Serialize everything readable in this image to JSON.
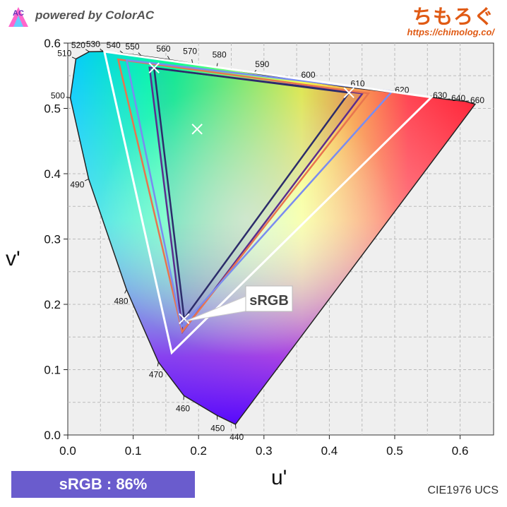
{
  "header": {
    "logo_text": "AC",
    "powered_by": "powered by ColorAC",
    "brand_name": "ちもろぐ",
    "brand_url": "https://chimolog.co/"
  },
  "footer": {
    "coverage_label": "sRGB : 86%",
    "color_space_label": "CIE1976 UCS"
  },
  "chart_data": {
    "type": "scatter",
    "title": "",
    "xlabel": "u'",
    "ylabel": "v'",
    "xlim": [
      0.0,
      0.65
    ],
    "ylim": [
      0.0,
      0.6
    ],
    "xticks": [
      "0.0",
      "0.1",
      "0.2",
      "0.3",
      "0.4",
      "0.5",
      "0.6"
    ],
    "yticks": [
      "0.0",
      "0.1",
      "0.2",
      "0.3",
      "0.4",
      "0.5",
      "0.6"
    ],
    "grid": true,
    "spectral_locus": [
      [
        0.2564,
        0.0163,
        "440"
      ],
      [
        0.2284,
        0.0299,
        "450"
      ],
      [
        0.1776,
        0.0602,
        "460"
      ],
      [
        0.1386,
        0.1115,
        "470"
      ],
      [
        0.0898,
        0.2227,
        "480"
      ],
      [
        0.0319,
        0.392,
        "490"
      ],
      [
        0.0039,
        0.5161,
        "500"
      ],
      [
        0.0124,
        0.5757,
        "510"
      ],
      [
        0.0328,
        0.5868,
        "520"
      ],
      [
        0.0547,
        0.5871,
        "530"
      ],
      [
        0.0848,
        0.5841,
        "540"
      ],
      [
        0.1124,
        0.5806,
        "550"
      ],
      [
        0.1559,
        0.5745,
        "560"
      ],
      [
        0.191,
        0.5688,
        "570"
      ],
      [
        0.2277,
        0.5629,
        "580"
      ],
      [
        0.2836,
        0.5539,
        "590"
      ],
      [
        0.35,
        0.5435,
        "600"
      ],
      [
        0.4245,
        0.533,
        "610"
      ],
      [
        0.492,
        0.525,
        "620"
      ],
      [
        0.55,
        0.518,
        "630"
      ],
      [
        0.578,
        0.514,
        "640"
      ],
      [
        0.607,
        0.511,
        "660"
      ],
      [
        0.623,
        0.5065,
        ""
      ]
    ],
    "series": [
      {
        "name": "sRGB",
        "color": "#5b2d8e",
        "points": [
          [
            0.4507,
            0.5229
          ],
          [
            0.125,
            0.5625
          ],
          [
            0.1754,
            0.1579
          ]
        ]
      },
      {
        "color": "#e8744f",
        "points": [
          [
            0.46,
            0.523
          ],
          [
            0.077,
            0.575
          ],
          [
            0.175,
            0.158
          ]
        ]
      },
      {
        "color": "#7a8cf0",
        "points": [
          [
            0.496,
            0.526
          ],
          [
            0.09,
            0.574
          ],
          [
            0.174,
            0.166
          ]
        ]
      },
      {
        "color": "#ffffff",
        "points": [
          [
            0.556,
            0.517
          ],
          [
            0.056,
            0.587
          ],
          [
            0.159,
            0.126
          ]
        ]
      },
      {
        "color": "#2c2c6a",
        "points": [
          [
            0.43,
            0.524
          ],
          [
            0.132,
            0.562
          ],
          [
            0.178,
            0.178
          ]
        ]
      }
    ],
    "markers": [
      {
        "u": 0.1978,
        "v": 0.4683
      },
      {
        "u": 0.43,
        "v": 0.524
      },
      {
        "u": 0.132,
        "v": 0.562
      },
      {
        "u": 0.178,
        "v": 0.178
      }
    ],
    "annotation": {
      "text": "sRGB",
      "u": 0.178,
      "v": 0.178
    }
  }
}
